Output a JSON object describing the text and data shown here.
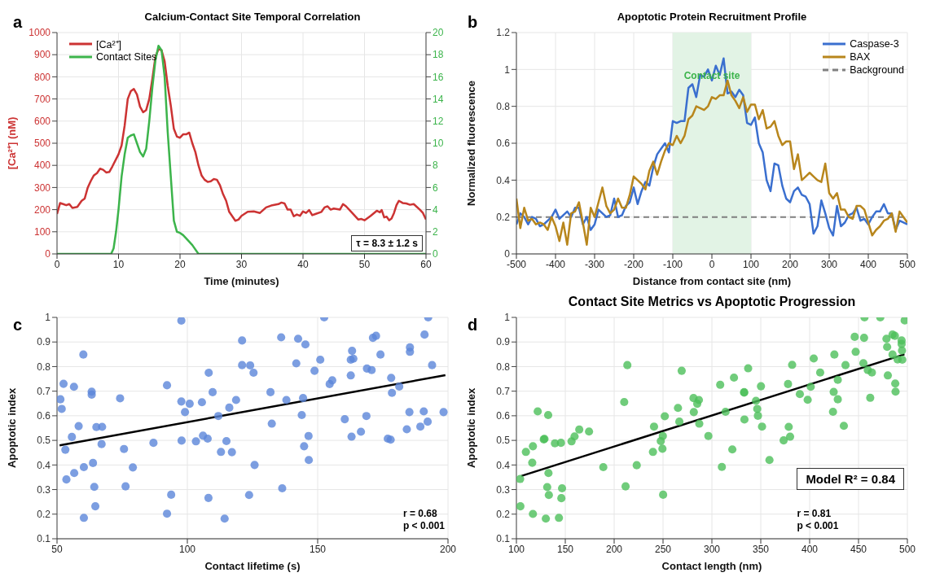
{
  "chart_data": [
    {
      "type": "line",
      "title": "Calcium-Contact Site Temporal Correlation",
      "xlabel": "Time (minutes)",
      "ylabel": "[Ca²⁺] (nM)",
      "xlim": [
        0,
        60
      ],
      "xticks": [
        0,
        10,
        20,
        30,
        40,
        50,
        60
      ],
      "ylim": [
        0,
        1000
      ],
      "yticks": [
        0,
        100,
        200,
        300,
        400,
        500,
        600,
        700,
        800,
        900,
        1000
      ],
      "y2lim": [
        0,
        20
      ],
      "y2ticks": [
        0,
        2,
        4,
        6,
        8,
        10,
        12,
        14,
        16,
        18,
        20
      ],
      "grid": true,
      "legend": "top left",
      "annotations": [
        "a",
        "τ = 8.3 ± 1.2 s"
      ],
      "series": [
        {
          "name": "[Ca²⁺]",
          "color": "#cc3333",
          "x": [
            0,
            0.5,
            1,
            1.5,
            2,
            2.5,
            3.3,
            4,
            4.5,
            5,
            5.5,
            6,
            6.5,
            7,
            7.5,
            8,
            8.5,
            9,
            10,
            10.5,
            11,
            11.5,
            12,
            12.5,
            13,
            13.5,
            14,
            14.5,
            15,
            15.5,
            16,
            16.5,
            17,
            17.5,
            18,
            18.5,
            19,
            19.5,
            20,
            20.5,
            21,
            21.5,
            22,
            22.5,
            23,
            23.5,
            24,
            24.5,
            25,
            25.5,
            26,
            26.5,
            27,
            27.5,
            28,
            28.5,
            29,
            29.5,
            30,
            31,
            32,
            33,
            34,
            35,
            36,
            36.5,
            37,
            37.5,
            38,
            38.5,
            39,
            39.5,
            40,
            40.5,
            41,
            41.5,
            42,
            43,
            43.5,
            44,
            44.5,
            45,
            46,
            46.5,
            47,
            48,
            49,
            49.5,
            50,
            51,
            52,
            52.5,
            52.8,
            53.2,
            53.6,
            54,
            54.4,
            54.8,
            55.2,
            55.6,
            56.2,
            56.8,
            57.4,
            58,
            59,
            59.5,
            60
          ],
          "values": [
            180,
            230,
            225,
            220,
            225,
            208,
            212,
            240,
            250,
            300,
            330,
            355,
            365,
            385,
            380,
            368,
            370,
            395,
            450,
            490,
            580,
            700,
            735,
            745,
            720,
            665,
            640,
            650,
            700,
            790,
            890,
            925,
            920,
            870,
            760,
            670,
            565,
            530,
            525,
            540,
            540,
            548,
            500,
            460,
            400,
            355,
            335,
            325,
            328,
            338,
            335,
            310,
            270,
            240,
            190,
            170,
            150,
            155,
            172,
            190,
            192,
            185,
            210,
            220,
            225,
            232,
            228,
            200,
            200,
            170,
            178,
            172,
            192,
            185,
            198,
            175,
            180,
            190,
            210,
            215,
            200,
            205,
            200,
            225,
            215,
            185,
            155,
            158,
            152,
            172,
            195,
            188,
            198,
            165,
            168,
            152,
            160,
            185,
            220,
            240,
            230,
            228,
            222,
            225,
            200,
            185,
            155
          ]
        },
        {
          "name": "Contact Sites",
          "color": "#3cb44b",
          "axis": "y2",
          "x": [
            0,
            8.8,
            9.2,
            9.6,
            10,
            10.5,
            11,
            11.5,
            12,
            12.5,
            13,
            13.5,
            14,
            14.5,
            15,
            15.5,
            16,
            16.5,
            17,
            17.5,
            18,
            18.5,
            19,
            19.5,
            20,
            20.5,
            21,
            22,
            23,
            60
          ],
          "values": [
            0,
            0,
            0.5,
            2,
            4,
            7,
            9,
            10.5,
            10.7,
            10.8,
            10,
            9.2,
            8.8,
            9.5,
            12,
            15,
            17.5,
            18.8,
            18.4,
            16,
            11,
            7,
            3,
            2,
            1.9,
            1.7,
            1.4,
            0.8,
            0,
            0
          ]
        }
      ]
    },
    {
      "type": "line",
      "title": "Apoptotic Protein Recruitment Profile",
      "xlabel": "Distance from contact site (nm)",
      "ylabel": "Normalized fluorescence",
      "xlim": [
        -500,
        500
      ],
      "xticks": [
        -500,
        -400,
        -300,
        -200,
        -100,
        0,
        100,
        200,
        300,
        400,
        500
      ],
      "ylim": [
        0,
        1.2
      ],
      "yticks": [
        0,
        0.2,
        0.4,
        0.6,
        0.8,
        1,
        1.2
      ],
      "grid": true,
      "legend": "top right",
      "annotations": [
        "b"
      ],
      "bands": [
        {
          "axis": "x",
          "from": -100,
          "to": 100,
          "label": "Contact site",
          "color": "#e2f3e5"
        }
      ],
      "ref_lines": [
        {
          "axis": "y",
          "value": 0.2,
          "label": "Background",
          "color": "#808080",
          "line_style": "dashed"
        }
      ],
      "series": [
        {
          "name": "Caspase-3",
          "color": "#3a6fcf",
          "x": [
            -500,
            -490,
            -480,
            -470,
            -460,
            -450,
            -440,
            -430,
            -420,
            -410,
            -400,
            -390,
            -380,
            -370,
            -360,
            -350,
            -340,
            -330,
            -320,
            -310,
            -300,
            -290,
            -280,
            -270,
            -260,
            -250,
            -240,
            -230,
            -220,
            -210,
            -200,
            -190,
            -180,
            -170,
            -160,
            -150,
            -140,
            -130,
            -120,
            -110,
            -100,
            -90,
            -80,
            -70,
            -60,
            -50,
            -40,
            -30,
            -20,
            -10,
            0,
            10,
            20,
            30,
            40,
            50,
            60,
            70,
            80,
            90,
            100,
            110,
            120,
            130,
            140,
            150,
            160,
            170,
            180,
            190,
            200,
            210,
            220,
            230,
            240,
            250,
            260,
            270,
            280,
            290,
            300,
            310,
            320,
            330,
            340,
            350,
            360,
            370,
            380,
            390,
            400,
            410,
            420,
            430,
            440,
            450,
            460,
            470,
            480,
            490,
            500
          ],
          "values": [
            0.16,
            0.22,
            0.2,
            0.16,
            0.2,
            0.19,
            0.15,
            0.16,
            0.18,
            0.2,
            0.24,
            0.19,
            0.21,
            0.23,
            0.2,
            0.25,
            0.25,
            0.16,
            0.2,
            0.13,
            0.16,
            0.24,
            0.22,
            0.2,
            0.21,
            0.3,
            0.2,
            0.21,
            0.26,
            0.28,
            0.36,
            0.27,
            0.34,
            0.39,
            0.37,
            0.47,
            0.54,
            0.57,
            0.6,
            0.55,
            0.72,
            0.71,
            0.72,
            0.72,
            0.9,
            0.92,
            0.85,
            0.97,
            0.96,
            1.0,
            0.94,
            1.02,
            0.97,
            1.06,
            0.87,
            0.88,
            0.85,
            0.89,
            0.86,
            0.71,
            0.7,
            0.74,
            0.6,
            0.55,
            0.4,
            0.34,
            0.49,
            0.48,
            0.37,
            0.3,
            0.28,
            0.34,
            0.36,
            0.32,
            0.31,
            0.27,
            0.11,
            0.15,
            0.29,
            0.22,
            0.14,
            0.1,
            0.26,
            0.15,
            0.17,
            0.21,
            0.22,
            0.25,
            0.18,
            0.19,
            0.16,
            0.2,
            0.23,
            0.23,
            0.27,
            0.22,
            0.22,
            0.13,
            0.18,
            0.17,
            0.16
          ]
        },
        {
          "name": "BAX",
          "color": "#b8861c",
          "x": [
            -500,
            -490,
            -480,
            -470,
            -460,
            -450,
            -440,
            -430,
            -420,
            -410,
            -400,
            -390,
            -380,
            -370,
            -360,
            -350,
            -340,
            -330,
            -320,
            -310,
            -300,
            -290,
            -280,
            -270,
            -260,
            -250,
            -240,
            -230,
            -220,
            -210,
            -200,
            -190,
            -180,
            -170,
            -160,
            -150,
            -140,
            -130,
            -120,
            -110,
            -100,
            -90,
            -80,
            -70,
            -60,
            -50,
            -40,
            -30,
            -20,
            -10,
            0,
            10,
            20,
            30,
            40,
            50,
            60,
            70,
            80,
            90,
            100,
            110,
            120,
            130,
            140,
            150,
            160,
            170,
            180,
            190,
            200,
            210,
            220,
            230,
            240,
            250,
            260,
            270,
            280,
            290,
            300,
            310,
            320,
            330,
            340,
            350,
            360,
            370,
            380,
            390,
            400,
            410,
            420,
            430,
            440,
            450,
            460,
            470,
            480,
            490,
            500
          ],
          "values": [
            0.3,
            0.14,
            0.25,
            0.18,
            0.19,
            0.16,
            0.17,
            0.16,
            0.13,
            0.2,
            0.15,
            0.07,
            0.17,
            0.05,
            0.22,
            0.23,
            0.28,
            0.17,
            0.05,
            0.25,
            0.2,
            0.28,
            0.36,
            0.26,
            0.22,
            0.24,
            0.3,
            0.25,
            0.25,
            0.32,
            0.42,
            0.4,
            0.38,
            0.35,
            0.45,
            0.5,
            0.43,
            0.5,
            0.56,
            0.6,
            0.59,
            0.64,
            0.6,
            0.64,
            0.73,
            0.75,
            0.8,
            0.79,
            0.78,
            0.8,
            0.85,
            0.84,
            0.86,
            0.86,
            0.94,
            0.86,
            0.83,
            0.79,
            0.85,
            0.77,
            0.81,
            0.81,
            0.73,
            0.78,
            0.68,
            0.69,
            0.72,
            0.64,
            0.59,
            0.61,
            0.61,
            0.46,
            0.54,
            0.4,
            0.42,
            0.44,
            0.42,
            0.4,
            0.39,
            0.49,
            0.33,
            0.3,
            0.33,
            0.24,
            0.24,
            0.2,
            0.19,
            0.26,
            0.26,
            0.24,
            0.17,
            0.1,
            0.13,
            0.15,
            0.18,
            0.19,
            0.22,
            0.12,
            0.23,
            0.2,
            0.17
          ]
        }
      ]
    },
    {
      "type": "scatter",
      "xlabel": "Contact lifetime (s)",
      "ylabel": "Apoptotic index",
      "xlim": [
        50,
        200
      ],
      "xticks": [
        50,
        100,
        150,
        200
      ],
      "ylim": [
        0.1,
        1
      ],
      "yticks": [
        0.1,
        0.2,
        0.3,
        0.4,
        0.5,
        0.6,
        0.7,
        0.8,
        0.9,
        1
      ],
      "grid": true,
      "marker": "circle",
      "annotations": [
        "c",
        "r = 0.68",
        "p < 0.001"
      ],
      "series": [
        {
          "color": "#5b86d9",
          "x": [
            51.3,
            51.8,
            52.5,
            53.2,
            53.6,
            55.7,
            56.5,
            56.6,
            58.3,
            60.1,
            60.3,
            60.3,
            63.3,
            63.3,
            63.8,
            64.3,
            64.7,
            65.1,
            67.3,
            67.1,
            74.2,
            75.7,
            76.3,
            79.1,
            87.0,
            92.2,
            92.2,
            93.8,
            97.7,
            97.7,
            97.8,
            99.1,
            100.9,
            103.3,
            105.6,
            106.0,
            107.8,
            108.2,
            108.1,
            109.7,
            111.9,
            112.9,
            114.3,
            115.0,
            116.1,
            117.1,
            118.7,
            121.0,
            121.0,
            123.7,
            124.1,
            125.4,
            125.8,
            131.9,
            132.4,
            136.0,
            136.4,
            138.0,
            141.8,
            142.5,
            143.9,
            144.4,
            144.8,
            145.3,
            146.5,
            146.6,
            148.8,
            151.0,
            152.5,
            154.6,
            155.6,
            160.4,
            162.7,
            162.7,
            163.0,
            163.2,
            163.7,
            166.6,
            168.7,
            168.9,
            170.7,
            171.2,
            172.4,
            174.1,
            176.9,
            178.0,
            178.2,
            178.5,
            181.3,
            184.2,
            185.2,
            185.4,
            185.4,
            189.4,
            190.7,
            191.0,
            192.2,
            192.4,
            193.9,
            198.3
          ],
          "values": [
            0.667,
            0.628,
            0.73,
            0.462,
            0.341,
            0.514,
            0.718,
            0.367,
            0.558,
            0.849,
            0.185,
            0.391,
            0.698,
            0.686,
            0.408,
            0.311,
            0.232,
            0.554,
            0.555,
            0.485,
            0.671,
            0.465,
            0.313,
            0.39,
            0.49,
            0.724,
            0.202,
            0.279,
            0.987,
            0.658,
            0.499,
            0.615,
            0.649,
            0.496,
            0.655,
            0.519,
            0.507,
            0.775,
            0.266,
            0.696,
            0.599,
            0.453,
            0.182,
            0.497,
            0.633,
            0.452,
            0.664,
            0.906,
            0.806,
            0.278,
            0.805,
            0.775,
            0.4,
            0.696,
            0.568,
            0.919,
            0.305,
            0.664,
            0.813,
            0.913,
            0.603,
            0.672,
            0.476,
            0.89,
            0.518,
            0.42,
            0.783,
            0.828,
            1.0,
            0.729,
            0.744,
            0.586,
            0.828,
            0.764,
            0.515,
            0.864,
            0.832,
            0.535,
            0.599,
            0.792,
            0.786,
            0.917,
            0.925,
            0.849,
            0.507,
            0.503,
            0.754,
            0.693,
            0.719,
            0.545,
            0.615,
            0.878,
            0.86,
            0.556,
            0.618,
            0.93,
            0.576,
            1.0,
            0.806,
            0.615
          ]
        },
        {
          "type": "line",
          "marker": "none",
          "color": "#000000",
          "x": [
            51,
            199
          ],
          "values": [
            0.48,
            0.765
          ]
        }
      ]
    },
    {
      "type": "scatter",
      "title": "Contact Site Metrics vs Apoptotic Progression",
      "xlabel": "Contact length (nm)",
      "ylabel": "Apoptotic index",
      "xlim": [
        100,
        500
      ],
      "xticks": [
        100,
        150,
        200,
        250,
        300,
        350,
        400,
        450,
        500
      ],
      "ylim": [
        0.1,
        1
      ],
      "yticks": [
        0.1,
        0.2,
        0.3,
        0.4,
        0.5,
        0.6,
        0.7,
        0.8,
        0.9,
        1
      ],
      "grid": true,
      "marker": "circle",
      "annotations": [
        "d",
        "Model R² = 0.84",
        "r = 0.81",
        "p < 0.001"
      ],
      "series": [
        {
          "color": "#4cbf5a",
          "x": [
            103.8,
            104.1,
            109.7,
            116.2,
            116.9,
            116.9,
            121.8,
            128.0,
            128.7,
            130.1,
            131.5,
            132.5,
            132.8,
            133.2,
            139.4,
            143.5,
            145.6,
            146.0,
            146.7,
            156.4,
            159.5,
            164.3,
            174.3,
            188.9,
            210.3,
            211.7,
            213.5,
            223.1,
            239.7,
            240.8,
            247.7,
            249.4,
            249.8,
            250.1,
            251.8,
            265.3,
            266.7,
            269.1,
            281.2,
            281.5,
            285.0,
            286.7,
            287.1,
            296.4,
            308.5,
            310.2,
            314.0,
            320.9,
            322.6,
            333.0,
            333.0,
            333.3,
            337.1,
            345.1,
            346.4,
            347.1,
            350.2,
            351.3,
            358.9,
            373.4,
            377.9,
            378.6,
            380.0,
            382.1,
            390.0,
            398.0,
            401.1,
            404.2,
            410.8,
            423.9,
            424.6,
            425.3,
            428.8,
            428.8,
            435.0,
            436.7,
            446.1,
            447.1,
            455.0,
            455.7,
            456.1,
            459.5,
            462.0,
            463.7,
            472.3,
            478.6,
            479.3,
            480.0,
            484.8,
            484.8,
            487.2,
            487.6,
            487.9,
            490.0,
            494.1,
            494.1,
            494.5,
            494.8,
            497.2
          ],
          "values": [
            0.343,
            0.232,
            0.453,
            0.409,
            0.476,
            0.201,
            0.618,
            0.504,
            0.506,
            0.182,
            0.31,
            0.603,
            0.367,
            0.278,
            0.488,
            0.185,
            0.49,
            0.265,
            0.305,
            0.496,
            0.516,
            0.544,
            0.536,
            0.391,
            0.656,
            0.313,
            0.806,
            0.399,
            0.453,
            0.556,
            0.497,
            0.466,
            0.518,
            0.279,
            0.598,
            0.632,
            0.576,
            0.783,
            0.672,
            0.615,
            0.649,
            0.664,
            0.568,
            0.518,
            0.726,
            0.392,
            0.616,
            0.463,
            0.755,
            0.696,
            0.694,
            0.585,
            0.793,
            0.661,
            0.628,
            0.6,
            0.72,
            0.556,
            0.42,
            0.5,
            0.729,
            0.555,
            0.515,
            0.807,
            0.688,
            0.665,
            0.718,
            0.833,
            0.776,
            0.616,
            0.697,
            0.849,
            0.746,
            0.667,
            0.559,
            0.806,
            0.921,
            0.86,
            0.814,
            0.917,
            1.0,
            0.786,
            0.673,
            0.776,
            1.0,
            0.913,
            0.88,
            0.764,
            0.93,
            0.849,
            0.925,
            0.731,
            0.698,
            0.829,
            0.906,
            0.892,
            0.865,
            0.828,
            0.988
          ]
        },
        {
          "type": "line",
          "marker": "none",
          "color": "#000000",
          "x": [
            105,
            497
          ],
          "values": [
            0.355,
            0.85
          ]
        }
      ]
    }
  ]
}
